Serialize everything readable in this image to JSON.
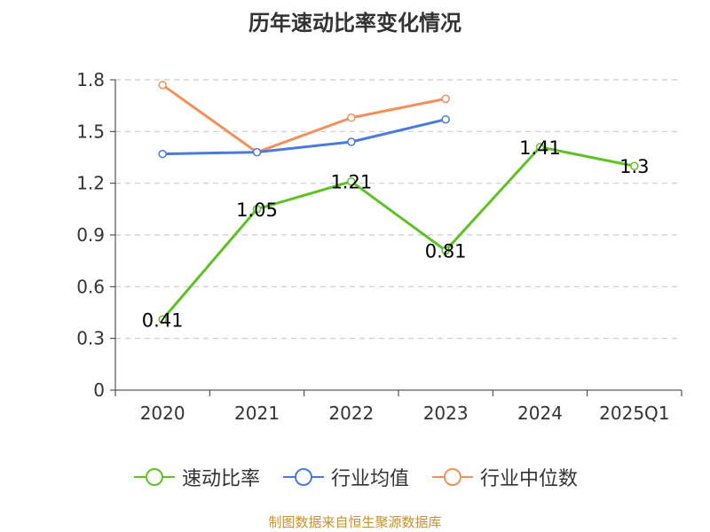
{
  "chart_data": {
    "type": "line",
    "title": "历年速动比率变化情况",
    "categories": [
      "2020",
      "2021",
      "2022",
      "2023",
      "2024",
      "2025Q1"
    ],
    "ylim": [
      0,
      1.8
    ],
    "yticks": [
      "0",
      "0.3",
      "0.6",
      "0.9",
      "1.2",
      "1.5",
      "1.8"
    ],
    "grid": true,
    "legend_position": "bottom",
    "series": [
      {
        "name": "速动比率",
        "color": "#5ec126",
        "values": [
          0.41,
          1.05,
          1.21,
          0.81,
          1.41,
          1.3
        ],
        "labels": [
          "0.41",
          "1.05",
          "1.21",
          "0.81",
          "1.41",
          "1.3"
        ]
      },
      {
        "name": "行业均值",
        "color": "#4a7bdc",
        "values": [
          1.37,
          1.38,
          1.44,
          1.57,
          null,
          null
        ]
      },
      {
        "name": "行业中位数",
        "color": "#f3905a",
        "values": [
          1.77,
          1.38,
          1.58,
          1.69,
          null,
          null
        ]
      }
    ]
  },
  "source_text": "制图数据来自恒生聚源数据库"
}
